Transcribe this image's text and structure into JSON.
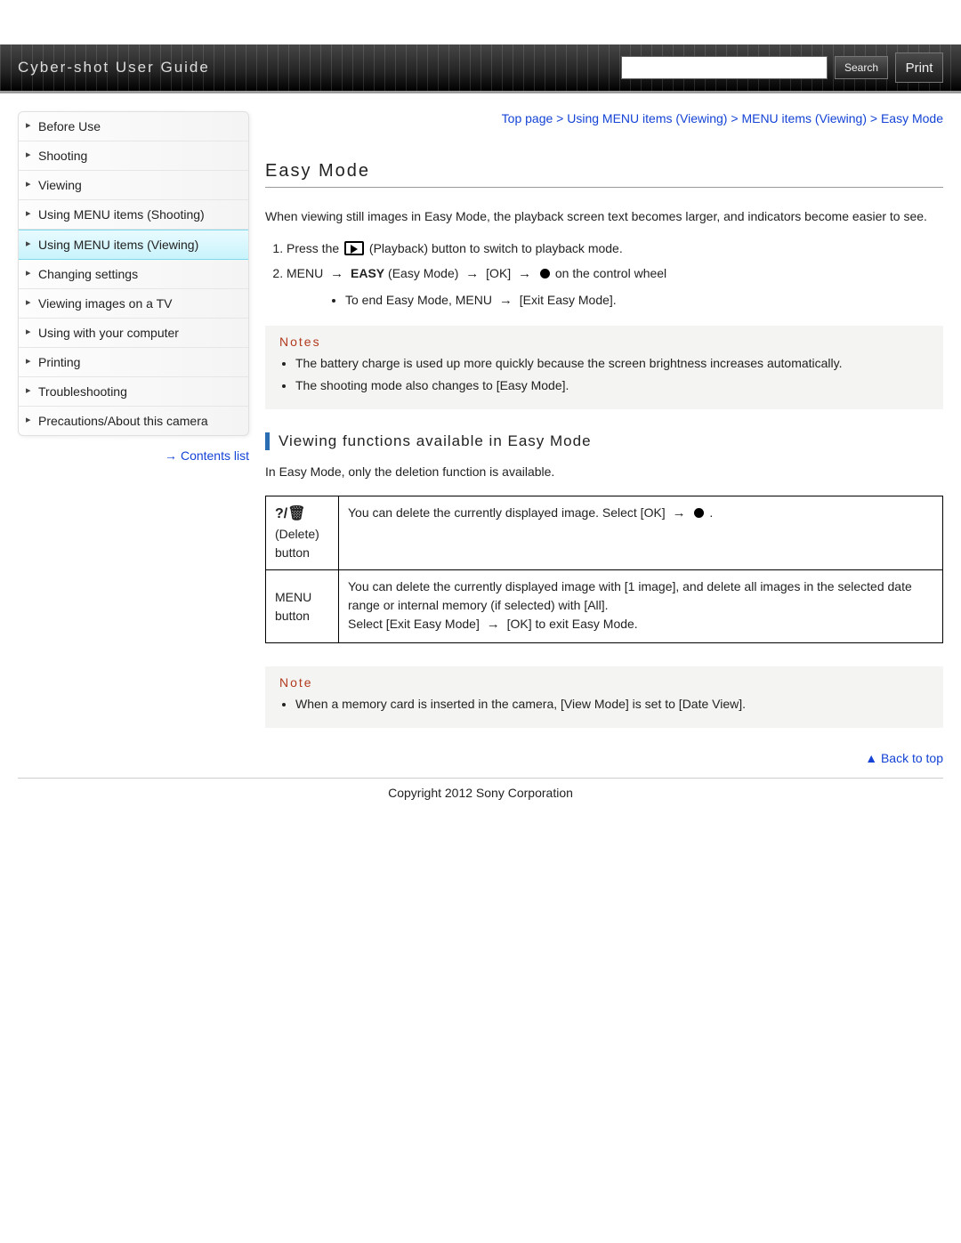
{
  "header": {
    "title": "Cyber-shot User Guide",
    "search_btn": "Search",
    "print_btn": "Print"
  },
  "sidebar": {
    "items": [
      {
        "label": "Before Use"
      },
      {
        "label": "Shooting"
      },
      {
        "label": "Viewing"
      },
      {
        "label": "Using MENU items (Shooting)"
      },
      {
        "label": "Using MENU items (Viewing)"
      },
      {
        "label": "Changing settings"
      },
      {
        "label": "Viewing images on a TV"
      },
      {
        "label": "Using with your computer"
      },
      {
        "label": "Printing"
      },
      {
        "label": "Troubleshooting"
      },
      {
        "label": "Precautions/About this camera"
      }
    ],
    "active_index": 4,
    "contents_link": "Contents list"
  },
  "breadcrumb": {
    "items": [
      "Top page",
      "Using MENU items (Viewing)",
      "MENU items (Viewing)",
      "Easy Mode"
    ]
  },
  "page": {
    "title": "Easy Mode",
    "intro": "When viewing still images in Easy Mode, the playback screen text becomes larger, and indicators become easier to see.",
    "step1_a": "Press the ",
    "step1_b": " (Playback) button to switch to playback mode.",
    "step2_a": "MENU ",
    "step2_easy": "EASY",
    "step2_b": " (Easy Mode) ",
    "step2_c": " [OK] ",
    "step2_d": " on the control wheel",
    "step2_sub_a": "To end Easy Mode, MENU ",
    "step2_sub_b": " [Exit Easy Mode].",
    "notes1_title": "Notes",
    "notes1": [
      "The battery charge is used up more quickly because the screen brightness increases automatically.",
      "The shooting mode also changes to [Easy Mode]."
    ],
    "section_h": "Viewing functions available in Easy Mode",
    "section_intro": "In Easy Mode, only the deletion function is available.",
    "table": {
      "row1_key_icon": "?/🗑",
      "row1_key_a": "(Delete) button",
      "row1_val_a": "You can delete the currently displayed image. Select [OK] ",
      "row1_val_b": " .",
      "row2_key": "MENU button",
      "row2_val_a": "You can delete the currently displayed image with [1 image], and delete all images in the selected date range or internal memory (if selected) with [All].",
      "row2_val_b": "Select [Exit Easy Mode] ",
      "row2_val_c": " [OK] to exit Easy Mode."
    },
    "notes2_title": "Note",
    "notes2": [
      "When a memory card is inserted in the camera, [View Mode] is set to [Date View]."
    ],
    "back_to_top": "Back to top",
    "copyright": "Copyright 2012 Sony Corporation"
  }
}
